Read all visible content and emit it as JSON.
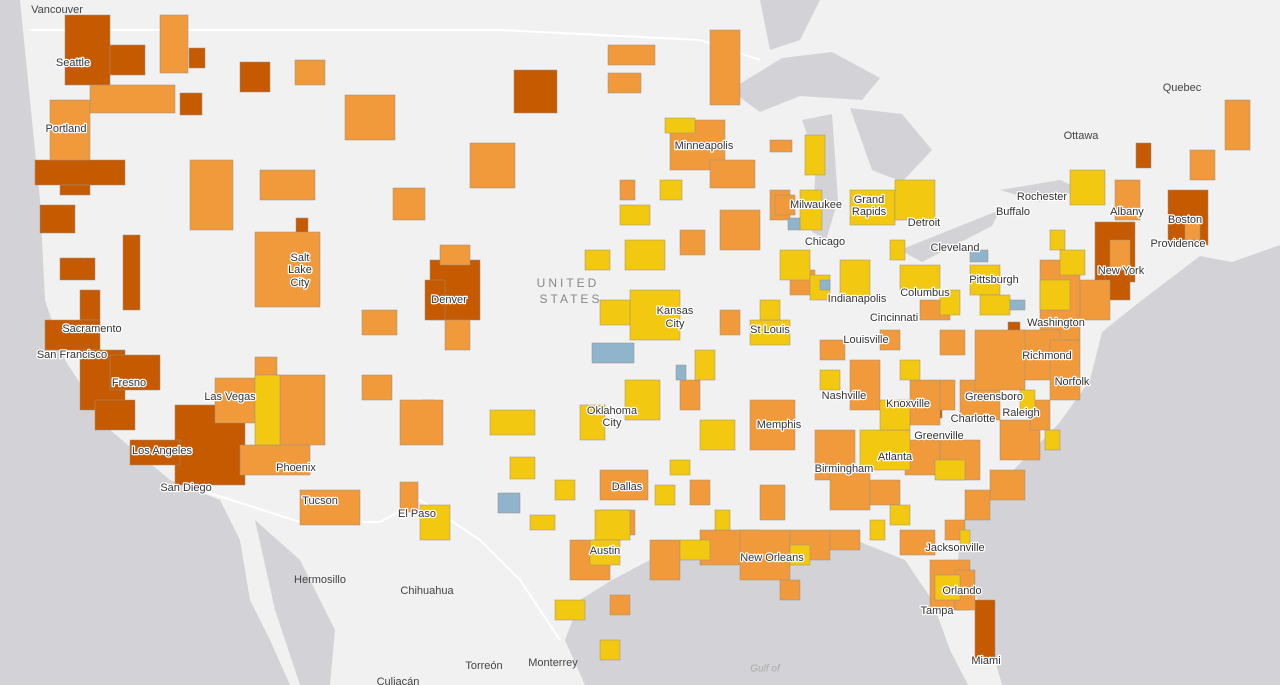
{
  "labels": [
    "Vancouver",
    "Seattle",
    "Portland",
    "Sacramento",
    "San Francisco",
    "Fresno",
    "Las Vegas",
    "Los Angeles",
    "San Diego",
    "Phoenix",
    "Tucson",
    "El Paso",
    "Hermosillo",
    "Chihuahua",
    "Torreón",
    "Monterrey",
    "Culiacán",
    "Salt",
    "Lake",
    "City",
    "Denver",
    "Minneapolis",
    "Kansas",
    "City",
    "Oklahoma",
    "City",
    "Dallas",
    "Austin",
    "New Orleans",
    "Memphis",
    "St Louis",
    "Chicago",
    "Milwaukee",
    "Grand",
    "Rapids",
    "Detroit",
    "Indianapolis",
    "Cincinnati",
    "Louisville",
    "Nashville",
    "Knoxville",
    "Birmingham",
    "Atlanta",
    "Greenville",
    "Charlotte",
    "Greensboro",
    "Raleigh",
    "Columbus",
    "Cleveland",
    "Pittsburgh",
    "Washington",
    "Richmond",
    "Norfolk",
    "New York",
    "Boston",
    "Providence",
    "Albany",
    "Rochester",
    "Buffalo",
    "Ottawa",
    "Quebec",
    "Jacksonville",
    "Orlando",
    "Tampa",
    "Miami",
    "Gulf of",
    "UNITED",
    "STATES"
  ]
}
